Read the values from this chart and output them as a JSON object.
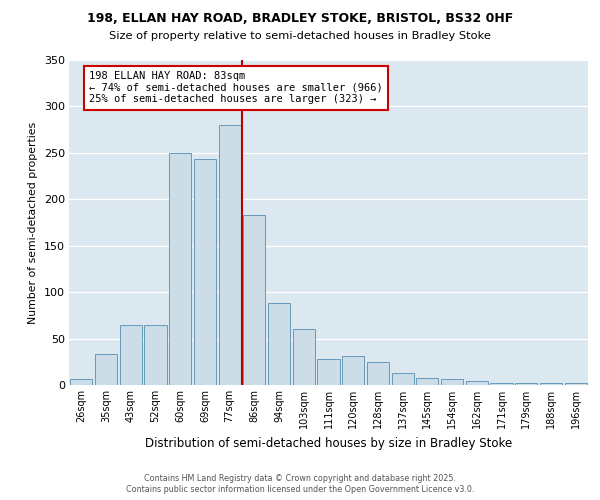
{
  "title1": "198, ELLAN HAY ROAD, BRADLEY STOKE, BRISTOL, BS32 0HF",
  "title2": "Size of property relative to semi-detached houses in Bradley Stoke",
  "xlabel": "Distribution of semi-detached houses by size in Bradley Stoke",
  "ylabel": "Number of semi-detached properties",
  "footer1": "Contains HM Land Registry data © Crown copyright and database right 2025.",
  "footer2": "Contains public sector information licensed under the Open Government Licence v3.0.",
  "bar_labels": [
    "26sqm",
    "35sqm",
    "43sqm",
    "52sqm",
    "60sqm",
    "69sqm",
    "77sqm",
    "86sqm",
    "94sqm",
    "103sqm",
    "111sqm",
    "120sqm",
    "128sqm",
    "137sqm",
    "145sqm",
    "154sqm",
    "162sqm",
    "171sqm",
    "179sqm",
    "188sqm",
    "196sqm"
  ],
  "bar_values": [
    7,
    33,
    65,
    65,
    250,
    243,
    280,
    183,
    88,
    60,
    28,
    31,
    25,
    13,
    8,
    7,
    4,
    2,
    2,
    2,
    2
  ],
  "bar_color": "#ccdde8",
  "bar_edge_color": "#6699bb",
  "vline_color": "#bb0000",
  "vline_x": 6.5,
  "annotation_title": "198 ELLAN HAY ROAD: 83sqm",
  "annotation_line1": "← 74% of semi-detached houses are smaller (966)",
  "annotation_line2": "25% of semi-detached houses are larger (323) →",
  "annotation_box_edgecolor": "#cc0000",
  "ylim_max": 350,
  "yticks": [
    0,
    50,
    100,
    150,
    200,
    250,
    300,
    350
  ],
  "background_color": "#dce8f0"
}
